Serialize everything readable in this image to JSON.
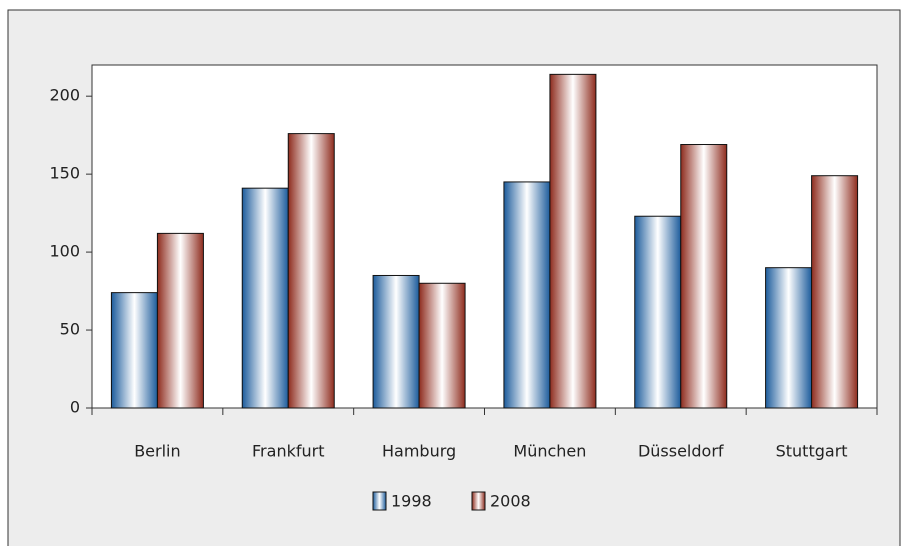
{
  "chart_data": {
    "type": "bar",
    "categories": [
      "Berlin",
      "Frankfurt",
      "Hamburg",
      "München",
      "Düsseldorf",
      "Stuttgart"
    ],
    "series": [
      {
        "name": "1998",
        "color": "#1d5c9c",
        "values": [
          74,
          141,
          85,
          145,
          123,
          90
        ]
      },
      {
        "name": "2008",
        "color": "#8e2c1e",
        "values": [
          112,
          176,
          80,
          214,
          169,
          149
        ]
      }
    ],
    "ylim": [
      0,
      220
    ],
    "yticks": [
      0,
      50,
      100,
      150,
      200
    ],
    "grid": false,
    "legend": "bottom"
  }
}
